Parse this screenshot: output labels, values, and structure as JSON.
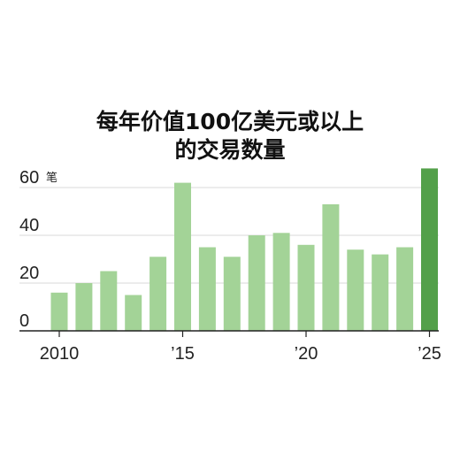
{
  "chart_data": {
    "type": "bar",
    "title_lines": [
      "每年价值100亿美元或以上",
      "的交易数量"
    ],
    "y_unit": "笔",
    "x": [
      2010,
      2011,
      2012,
      2013,
      2014,
      2015,
      2016,
      2017,
      2018,
      2019,
      2020,
      2021,
      2022,
      2023,
      2024,
      2025
    ],
    "values": [
      16,
      20,
      25,
      15,
      31,
      62,
      35,
      31,
      40,
      41,
      36,
      53,
      34,
      32,
      35,
      68
    ],
    "highlight_index": 15,
    "x_ticks": [
      {
        "value": 2010,
        "label": "2010"
      },
      {
        "value": 2015,
        "label": "’15"
      },
      {
        "value": 2020,
        "label": "’20"
      },
      {
        "value": 2025,
        "label": "’25"
      }
    ],
    "y_ticks": [
      0,
      20,
      40,
      60
    ],
    "ylim": [
      0,
      70
    ],
    "grid": true,
    "colors": {
      "bar": "#a3d397",
      "highlight": "#53a04a"
    }
  }
}
